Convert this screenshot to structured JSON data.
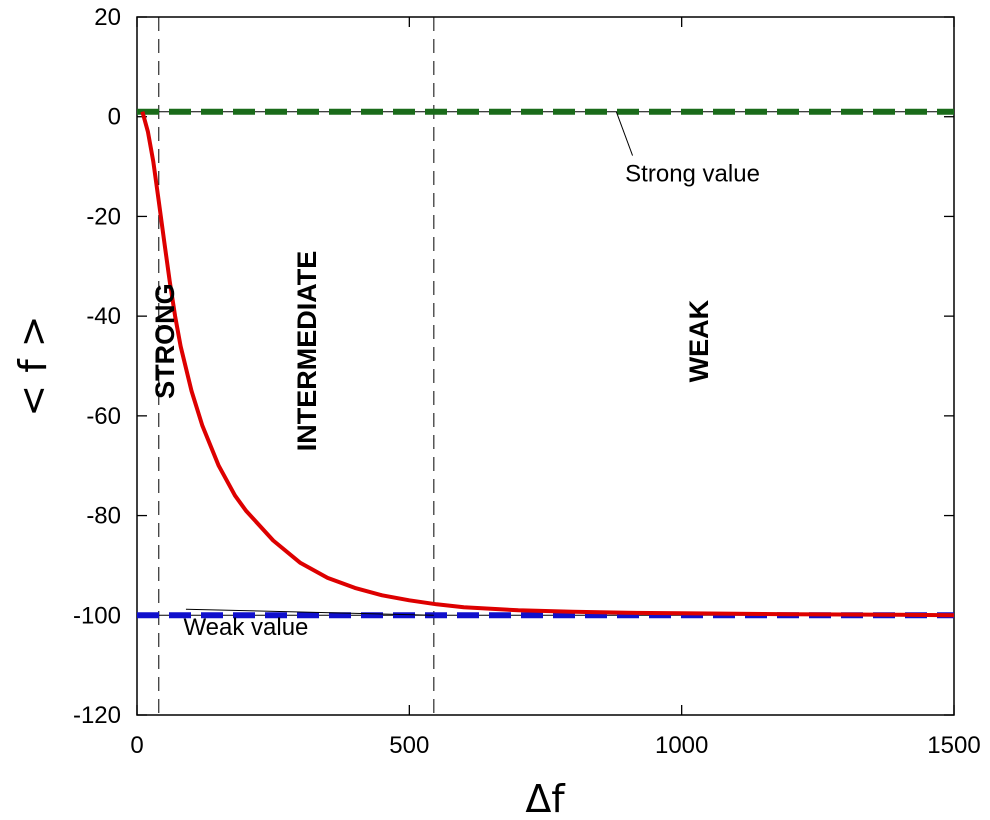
{
  "chart_data": {
    "type": "line",
    "title": "",
    "xlabel": "Δf",
    "ylabel": "< f >",
    "xlim": [
      0,
      1500
    ],
    "ylim": [
      -120,
      20
    ],
    "x_ticks": [
      0,
      500,
      1000,
      1500
    ],
    "y_ticks": [
      20,
      0,
      -20,
      -40,
      -60,
      -80,
      -100,
      -120
    ],
    "grid": false,
    "series": [
      {
        "color": "#dd0000",
        "style": "solid",
        "x": [
          10,
          20,
          30,
          40,
          50,
          60,
          70,
          80,
          100,
          120,
          150,
          180,
          200,
          250,
          300,
          350,
          400,
          450,
          500,
          550,
          600,
          700,
          800,
          900,
          1000,
          1100,
          1200,
          1300,
          1400,
          1500
        ],
        "y": [
          1,
          -3,
          -9,
          -17,
          -25,
          -33,
          -40,
          -46,
          -55,
          -62,
          -70,
          -76,
          -79,
          -85,
          -89.5,
          -92.5,
          -94.5,
          -96,
          -97,
          -97.8,
          -98.4,
          -99,
          -99.3,
          -99.5,
          -99.6,
          -99.7,
          -99.8,
          -99.85,
          -99.9,
          -100
        ]
      },
      {
        "color": "#1a6b1a",
        "style": "dashed",
        "x": [
          0,
          1500
        ],
        "y": [
          1,
          1
        ]
      },
      {
        "color": "#1010cc",
        "style": "dashed",
        "x": [
          0,
          1500
        ],
        "y": [
          -100,
          -100
        ]
      }
    ],
    "vlines": [
      40,
      545
    ],
    "regions": [
      {
        "label": "STRONG",
        "x": 50,
        "y": -45
      },
      {
        "label": "INTERMEDIATE",
        "x": 310,
        "y": -47
      },
      {
        "label": "WEAK",
        "x": 1030,
        "y": -45
      }
    ],
    "annotations": [
      {
        "label": "Strong value",
        "x": 1020,
        "y": -13,
        "point": [
          880,
          1
        ]
      },
      {
        "label": "Weak value",
        "x": 200,
        "y": -104,
        "point": [
          545,
          -100
        ]
      }
    ]
  }
}
